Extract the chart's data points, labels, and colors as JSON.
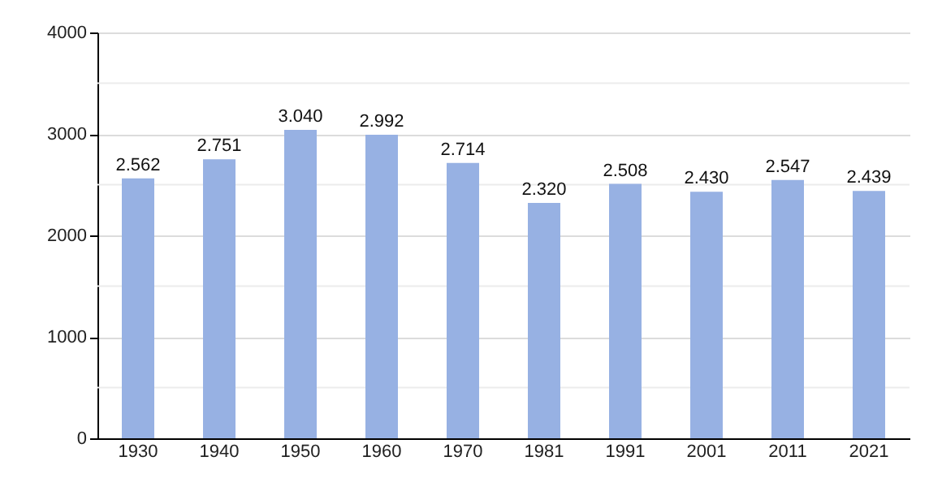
{
  "chart_data": {
    "type": "bar",
    "categories": [
      "1930",
      "1940",
      "1950",
      "1960",
      "1970",
      "1981",
      "1991",
      "2001",
      "2011",
      "2021"
    ],
    "values": [
      2562,
      2751,
      3040,
      2992,
      2714,
      2320,
      2508,
      2430,
      2547,
      2439
    ],
    "value_labels": [
      "2.562",
      "2.751",
      "3.040",
      "2.992",
      "2.714",
      "2.320",
      "2.508",
      "2.430",
      "2.547",
      "2.439"
    ],
    "color": "#97b1e3",
    "ylim": [
      0,
      4000
    ],
    "yticks": [
      0,
      {
        "value": 500,
        "label": null
      },
      1000,
      {
        "value": 1500,
        "label": null
      },
      2000,
      {
        "value": 2500,
        "label": null
      },
      3000,
      {
        "value": 3500,
        "label": null
      },
      4000
    ],
    "grid": "y"
  }
}
